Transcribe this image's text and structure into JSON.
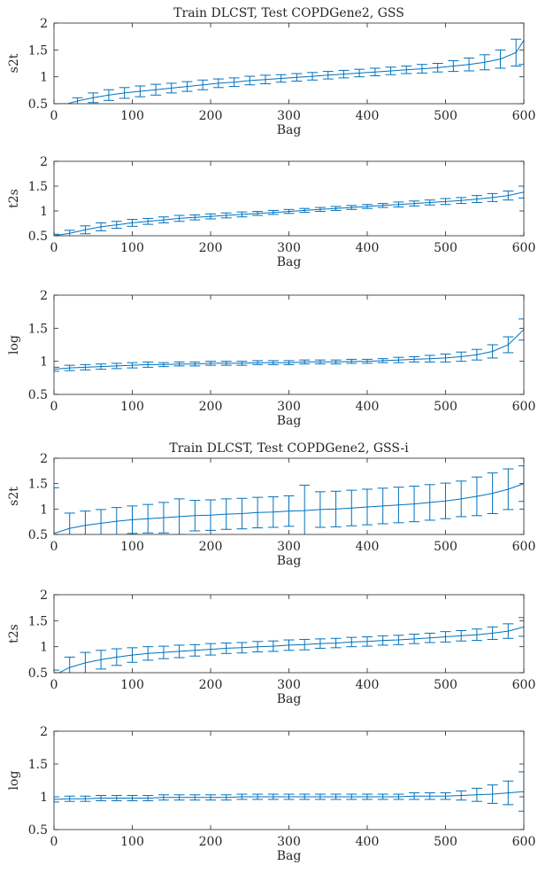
{
  "figure": {
    "accent_color": "#0072BD",
    "axis_color": "#262626"
  },
  "chart_data": [
    {
      "type": "line",
      "title": "Train DLCST, Test COPDGene2, GSS",
      "xlabel": "Bag",
      "ylabel": "s2t",
      "xlim": [
        0,
        600
      ],
      "ylim": [
        0.5,
        2
      ],
      "xticks": [
        0,
        100,
        200,
        300,
        400,
        500,
        600
      ],
      "yticks": [
        0.5,
        1,
        1.5,
        2
      ],
      "ytick_labels": [
        "0.5",
        "1",
        "1.5",
        "2"
      ],
      "grid": false,
      "error_bars": true,
      "x": [
        10,
        30,
        50,
        70,
        90,
        110,
        130,
        150,
        170,
        190,
        210,
        230,
        250,
        270,
        290,
        310,
        330,
        350,
        370,
        390,
        410,
        430,
        450,
        470,
        490,
        510,
        530,
        550,
        570,
        590,
        600
      ],
      "y": [
        0.47,
        0.55,
        0.61,
        0.66,
        0.7,
        0.73,
        0.76,
        0.79,
        0.82,
        0.85,
        0.88,
        0.9,
        0.93,
        0.95,
        0.97,
        0.99,
        1.01,
        1.03,
        1.05,
        1.07,
        1.09,
        1.11,
        1.13,
        1.15,
        1.17,
        1.2,
        1.23,
        1.27,
        1.33,
        1.45,
        1.68
      ],
      "err": [
        0.03,
        0.06,
        0.09,
        0.1,
        0.1,
        0.1,
        0.1,
        0.09,
        0.09,
        0.09,
        0.08,
        0.08,
        0.08,
        0.08,
        0.07,
        0.07,
        0.07,
        0.07,
        0.07,
        0.07,
        0.07,
        0.07,
        0.07,
        0.08,
        0.08,
        0.1,
        0.12,
        0.14,
        0.17,
        0.25,
        0.45
      ]
    },
    {
      "type": "line",
      "title": "",
      "xlabel": "Bag",
      "ylabel": "t2s",
      "xlim": [
        0,
        600
      ],
      "ylim": [
        0.5,
        2
      ],
      "xticks": [
        0,
        100,
        200,
        300,
        400,
        500,
        600
      ],
      "yticks": [
        0.5,
        1,
        1.5,
        2
      ],
      "ytick_labels": [
        "0.5",
        "1",
        "1.5",
        "2"
      ],
      "grid": false,
      "error_bars": true,
      "x": [
        0,
        20,
        40,
        60,
        80,
        100,
        120,
        140,
        160,
        180,
        200,
        220,
        240,
        260,
        280,
        300,
        320,
        340,
        360,
        380,
        400,
        420,
        440,
        460,
        480,
        500,
        520,
        540,
        560,
        580,
        600
      ],
      "y": [
        0.5,
        0.55,
        0.62,
        0.68,
        0.72,
        0.76,
        0.79,
        0.82,
        0.85,
        0.87,
        0.89,
        0.91,
        0.93,
        0.95,
        0.97,
        0.99,
        1.01,
        1.03,
        1.05,
        1.07,
        1.09,
        1.11,
        1.13,
        1.15,
        1.17,
        1.19,
        1.21,
        1.24,
        1.27,
        1.31,
        1.38
      ],
      "err": [
        0.03,
        0.06,
        0.08,
        0.08,
        0.07,
        0.07,
        0.06,
        0.06,
        0.06,
        0.05,
        0.05,
        0.05,
        0.05,
        0.04,
        0.04,
        0.04,
        0.04,
        0.04,
        0.04,
        0.04,
        0.04,
        0.04,
        0.05,
        0.05,
        0.05,
        0.06,
        0.06,
        0.07,
        0.08,
        0.09,
        0.12
      ]
    },
    {
      "type": "line",
      "title": "",
      "xlabel": "Bag",
      "ylabel": "log",
      "xlim": [
        0,
        600
      ],
      "ylim": [
        0.5,
        2
      ],
      "xticks": [
        0,
        100,
        200,
        300,
        400,
        500,
        600
      ],
      "yticks": [
        0.5,
        1,
        1.5,
        2
      ],
      "ytick_labels": [
        "0.5",
        "1",
        "1.5",
        "2"
      ],
      "grid": false,
      "error_bars": true,
      "x": [
        0,
        20,
        40,
        60,
        80,
        100,
        120,
        140,
        160,
        180,
        200,
        220,
        240,
        260,
        280,
        300,
        320,
        340,
        360,
        380,
        400,
        420,
        440,
        460,
        480,
        500,
        520,
        540,
        560,
        580,
        600
      ],
      "y": [
        0.88,
        0.9,
        0.91,
        0.92,
        0.93,
        0.94,
        0.95,
        0.95,
        0.96,
        0.96,
        0.97,
        0.97,
        0.97,
        0.98,
        0.98,
        0.98,
        0.99,
        0.99,
        0.99,
        1.0,
        1.0,
        1.01,
        1.02,
        1.03,
        1.04,
        1.05,
        1.07,
        1.1,
        1.15,
        1.25,
        1.48
      ],
      "err": [
        0.03,
        0.04,
        0.04,
        0.04,
        0.04,
        0.04,
        0.04,
        0.03,
        0.03,
        0.03,
        0.03,
        0.03,
        0.03,
        0.03,
        0.03,
        0.03,
        0.03,
        0.03,
        0.03,
        0.03,
        0.03,
        0.03,
        0.04,
        0.04,
        0.05,
        0.06,
        0.07,
        0.08,
        0.1,
        0.12,
        0.16
      ]
    },
    {
      "type": "line",
      "title": "Train DLCST, Test COPDGene2, GSS-i",
      "xlabel": "Bag",
      "ylabel": "s2t",
      "xlim": [
        0,
        600
      ],
      "ylim": [
        0.5,
        2
      ],
      "xticks": [
        0,
        100,
        200,
        300,
        400,
        500,
        600
      ],
      "yticks": [
        0.5,
        1,
        1.5,
        2
      ],
      "ytick_labels": [
        "0.5",
        "1",
        "1.5",
        "2"
      ],
      "grid": false,
      "error_bars": true,
      "x": [
        0,
        20,
        40,
        60,
        80,
        100,
        120,
        140,
        160,
        180,
        200,
        220,
        240,
        260,
        280,
        300,
        320,
        340,
        360,
        380,
        400,
        420,
        440,
        460,
        480,
        500,
        520,
        540,
        560,
        580,
        600
      ],
      "y": [
        0.52,
        0.62,
        0.68,
        0.72,
        0.76,
        0.79,
        0.81,
        0.83,
        0.85,
        0.87,
        0.88,
        0.9,
        0.91,
        0.93,
        0.94,
        0.96,
        0.97,
        0.99,
        1.0,
        1.02,
        1.04,
        1.06,
        1.08,
        1.1,
        1.13,
        1.16,
        1.2,
        1.25,
        1.31,
        1.39,
        1.5
      ],
      "err": [
        0.9,
        0.3,
        0.28,
        0.27,
        0.27,
        0.27,
        0.28,
        0.3,
        0.35,
        0.3,
        0.3,
        0.3,
        0.3,
        0.3,
        0.3,
        0.3,
        0.5,
        0.35,
        0.35,
        0.35,
        0.35,
        0.35,
        0.35,
        0.35,
        0.35,
        0.35,
        0.35,
        0.38,
        0.4,
        0.4,
        0.35
      ]
    },
    {
      "type": "line",
      "title": "",
      "xlabel": "Bag",
      "ylabel": "t2s",
      "xlim": [
        0,
        600
      ],
      "ylim": [
        0.5,
        2
      ],
      "xticks": [
        0,
        100,
        200,
        300,
        400,
        500,
        600
      ],
      "yticks": [
        0.5,
        1,
        1.5,
        2
      ],
      "ytick_labels": [
        "0.5",
        "1",
        "1.5",
        "2"
      ],
      "grid": false,
      "error_bars": true,
      "x": [
        0,
        20,
        40,
        60,
        80,
        100,
        120,
        140,
        160,
        180,
        200,
        220,
        240,
        260,
        280,
        300,
        320,
        340,
        360,
        380,
        400,
        420,
        440,
        460,
        480,
        500,
        520,
        540,
        560,
        580,
        600
      ],
      "y": [
        0.45,
        0.6,
        0.69,
        0.75,
        0.8,
        0.84,
        0.87,
        0.89,
        0.91,
        0.93,
        0.95,
        0.97,
        0.98,
        1.0,
        1.01,
        1.03,
        1.04,
        1.06,
        1.07,
        1.09,
        1.1,
        1.12,
        1.13,
        1.15,
        1.17,
        1.19,
        1.21,
        1.23,
        1.26,
        1.3,
        1.38
      ],
      "err": [
        0.1,
        0.2,
        0.2,
        0.18,
        0.16,
        0.14,
        0.13,
        0.12,
        0.12,
        0.11,
        0.11,
        0.1,
        0.1,
        0.1,
        0.1,
        0.1,
        0.1,
        0.09,
        0.09,
        0.09,
        0.09,
        0.09,
        0.09,
        0.09,
        0.09,
        0.1,
        0.1,
        0.11,
        0.12,
        0.14,
        0.18
      ]
    },
    {
      "type": "line",
      "title": "",
      "xlabel": "Bag",
      "ylabel": "log",
      "xlim": [
        0,
        600
      ],
      "ylim": [
        0.5,
        2
      ],
      "xticks": [
        0,
        100,
        200,
        300,
        400,
        500,
        600
      ],
      "yticks": [
        0.5,
        1,
        1.5,
        2
      ],
      "ytick_labels": [
        "0.5",
        "1",
        "1.5",
        "2"
      ],
      "grid": false,
      "error_bars": true,
      "x": [
        0,
        20,
        40,
        60,
        80,
        100,
        120,
        140,
        160,
        180,
        200,
        220,
        240,
        260,
        280,
        300,
        320,
        340,
        360,
        380,
        400,
        420,
        440,
        460,
        480,
        500,
        520,
        540,
        560,
        580,
        600
      ],
      "y": [
        0.96,
        0.97,
        0.97,
        0.98,
        0.98,
        0.98,
        0.98,
        0.99,
        0.99,
        0.99,
        0.99,
        0.99,
        1.0,
        1.0,
        1.0,
        1.0,
        1.0,
        1.0,
        1.0,
        1.0,
        1.0,
        1.0,
        1.0,
        1.01,
        1.01,
        1.01,
        1.02,
        1.03,
        1.04,
        1.06,
        1.08
      ],
      "err": [
        0.04,
        0.04,
        0.04,
        0.04,
        0.04,
        0.04,
        0.04,
        0.04,
        0.04,
        0.04,
        0.04,
        0.04,
        0.04,
        0.04,
        0.04,
        0.04,
        0.04,
        0.04,
        0.04,
        0.04,
        0.04,
        0.04,
        0.04,
        0.05,
        0.05,
        0.05,
        0.07,
        0.1,
        0.14,
        0.18,
        0.3
      ]
    }
  ]
}
